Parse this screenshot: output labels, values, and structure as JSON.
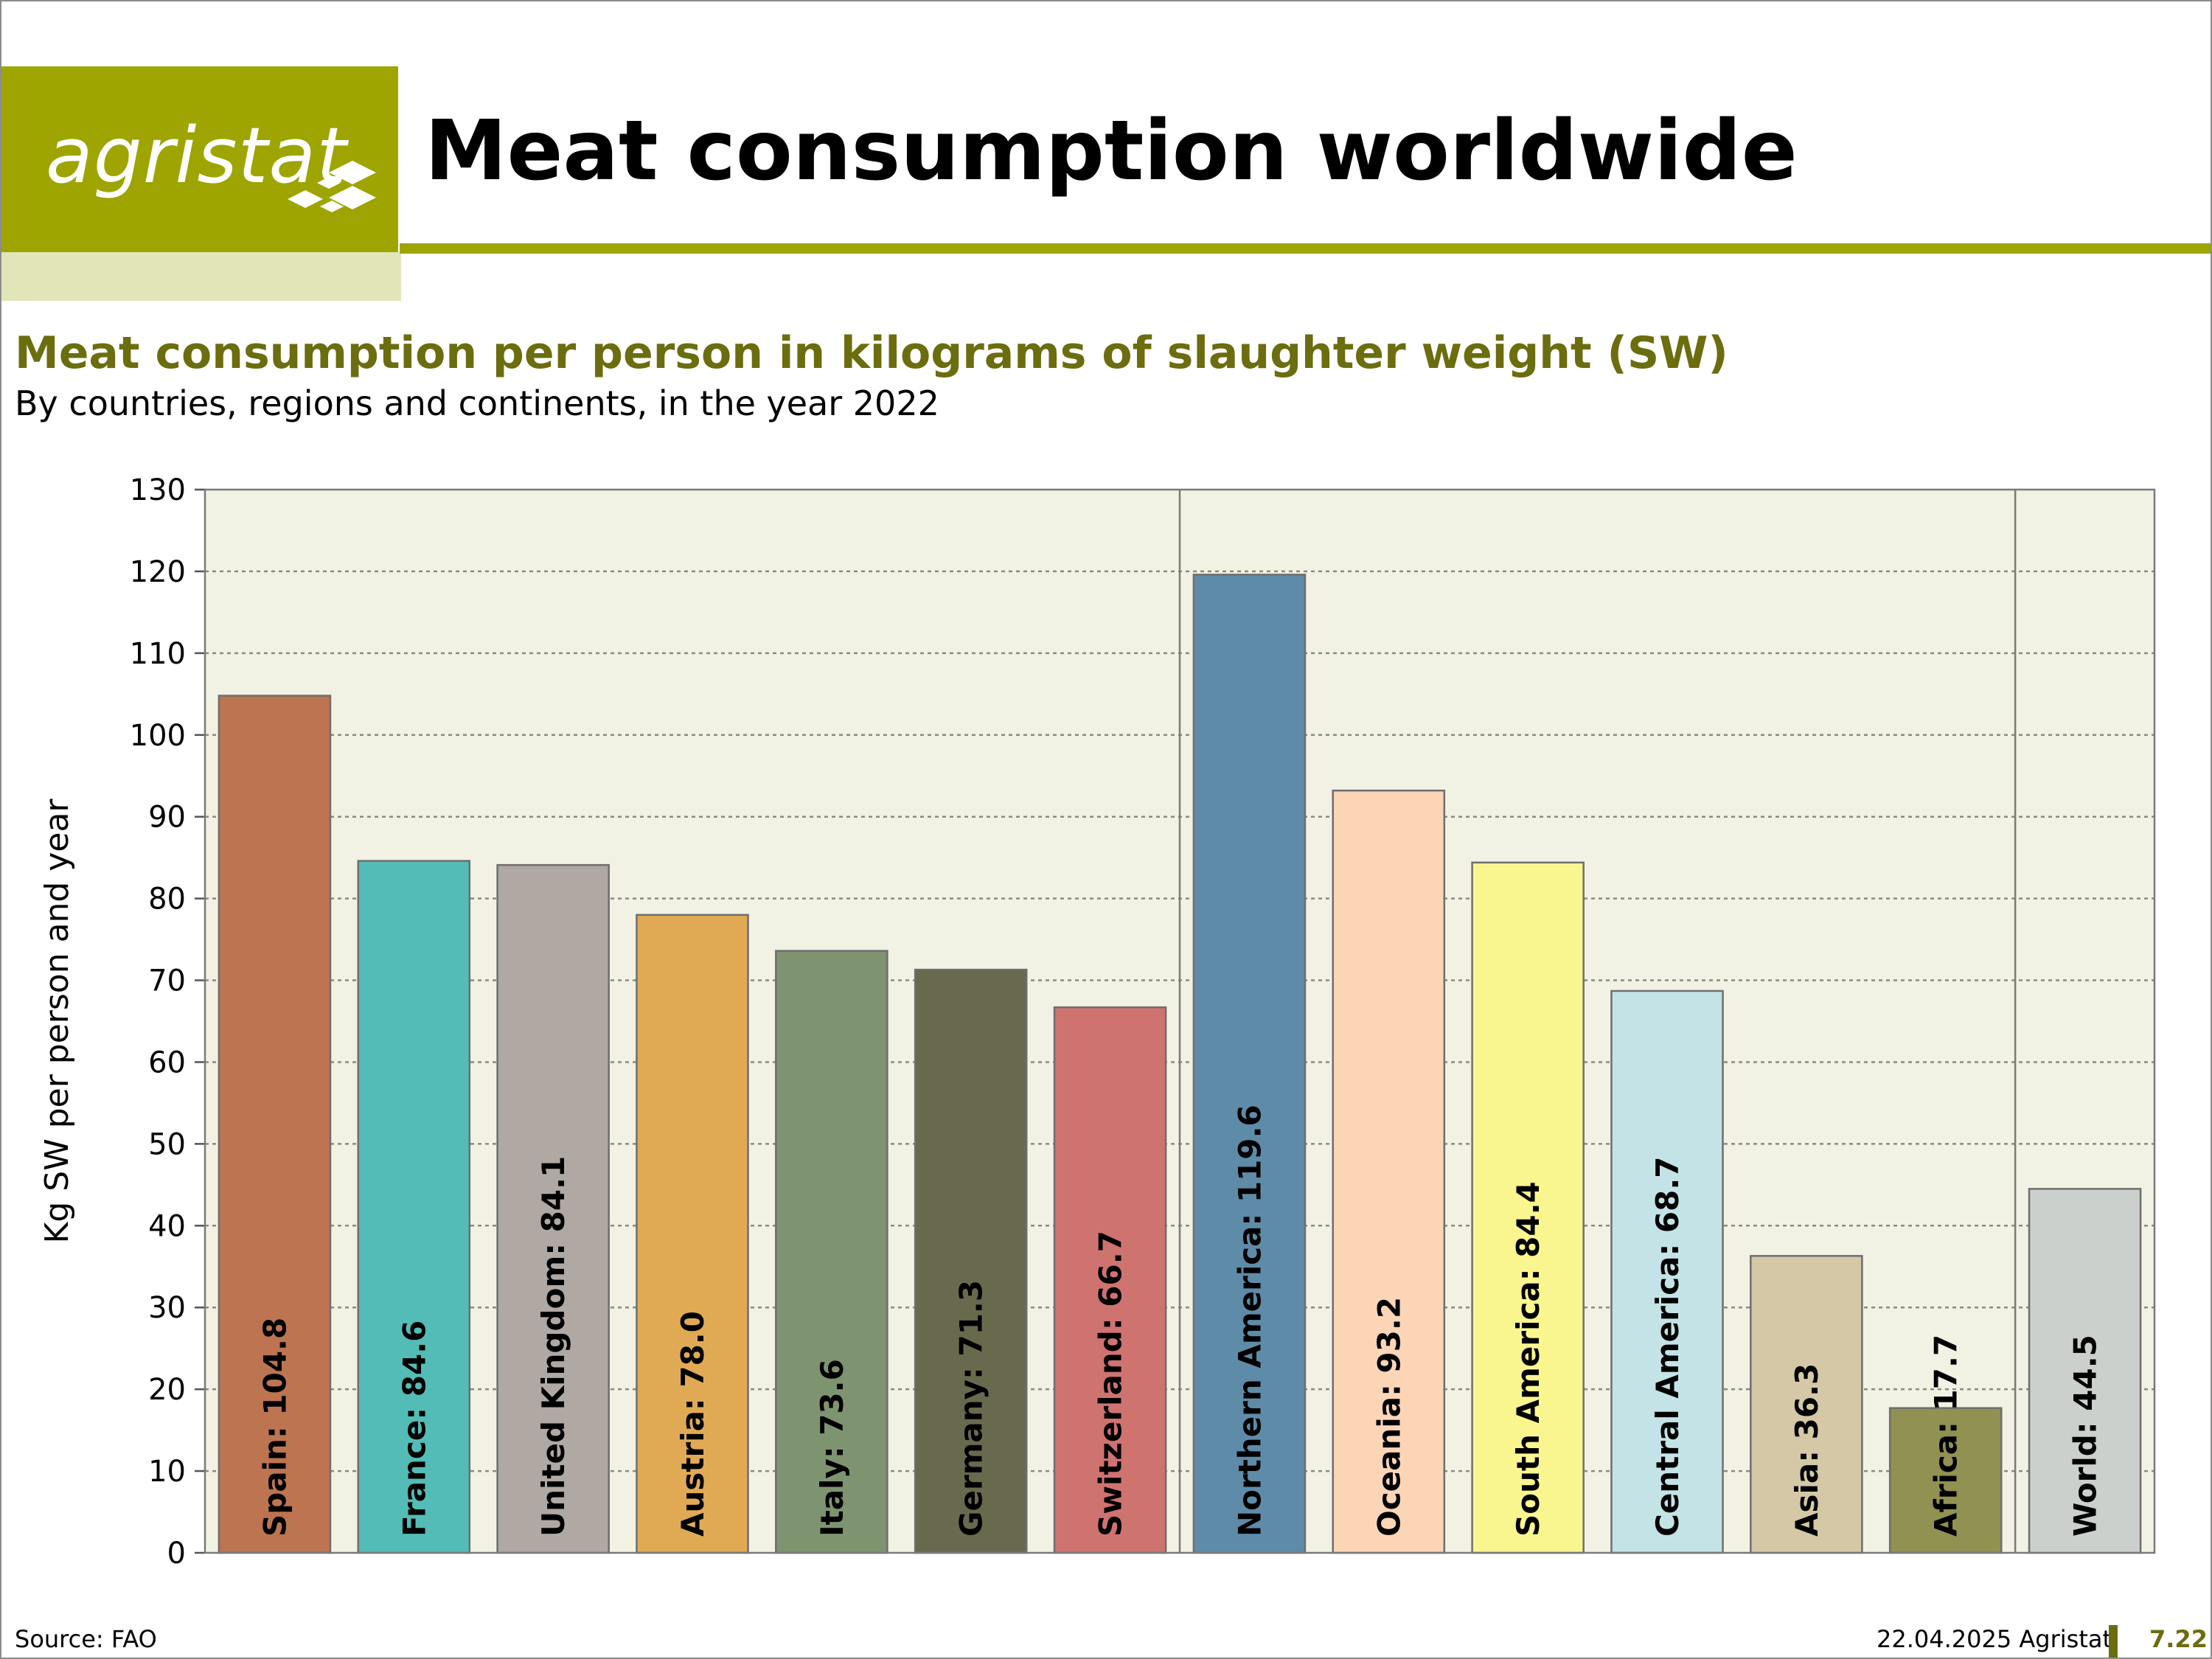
{
  "header": {
    "logo_text": "agristat",
    "title": "Meat consumption worldwide"
  },
  "subtitle": "Meat consumption per person in kilograms of slaughter weight (SW)",
  "subtitle2": "By countries, regions and continents, in the year 2022",
  "footer": {
    "source": "Source: FAO",
    "date": "22.04.2025 Agristat",
    "page": "7.22"
  },
  "colors": {
    "brand": "#9ea500",
    "brand_light": "#e2e5b8",
    "subtitle": "#6b6d0e",
    "plot_bg": "#f2f2e4"
  },
  "chart_data": {
    "type": "bar",
    "ylabel": "Kg SW per person and year",
    "ylim": [
      0,
      130
    ],
    "yticks": [
      0,
      10,
      20,
      30,
      40,
      50,
      60,
      70,
      80,
      90,
      100,
      110,
      120,
      130
    ],
    "grid": true,
    "groups": [
      {
        "categories": [
          "Spain",
          "France",
          "United Kingdom",
          "Austria",
          "Italy",
          "Germany",
          "Switzerland"
        ]
      },
      {
        "categories": [
          "Northern America",
          "Oceania",
          "South America",
          "Central America",
          "Asia",
          "Africa"
        ]
      },
      {
        "categories": [
          "World"
        ]
      }
    ],
    "categories": [
      "Spain",
      "France",
      "United Kingdom",
      "Austria",
      "Italy",
      "Germany",
      "Switzerland",
      "Northern America",
      "Oceania",
      "South America",
      "Central America",
      "Asia",
      "Africa",
      "World"
    ],
    "values": [
      104.8,
      84.6,
      84.1,
      78.0,
      73.6,
      71.3,
      66.7,
      119.6,
      93.2,
      84.4,
      68.7,
      36.3,
      17.7,
      44.5
    ],
    "labels": [
      "Spain: 104.8",
      "France: 84.6",
      "United Kingdom: 84.1",
      "Austria: 78.0",
      "Italy: 73.6",
      "Germany: 71.3",
      "Switzerland: 66.7",
      "Northern America: 119.6",
      "Oceania: 93.2",
      "South America: 84.4",
      "Central America: 68.7",
      "Asia: 36.3",
      "Africa: 17.7",
      "World: 44.5"
    ],
    "bar_colors": [
      "#bd7450",
      "#54bcb6",
      "#b0a8a2",
      "#e0aa55",
      "#7e9470",
      "#69694e",
      "#cf7370",
      "#5e8ba8",
      "#fcd5b7",
      "#f9f690",
      "#c4e3e6",
      "#d4c8a6",
      "#919152",
      "#cbd0cc"
    ]
  }
}
